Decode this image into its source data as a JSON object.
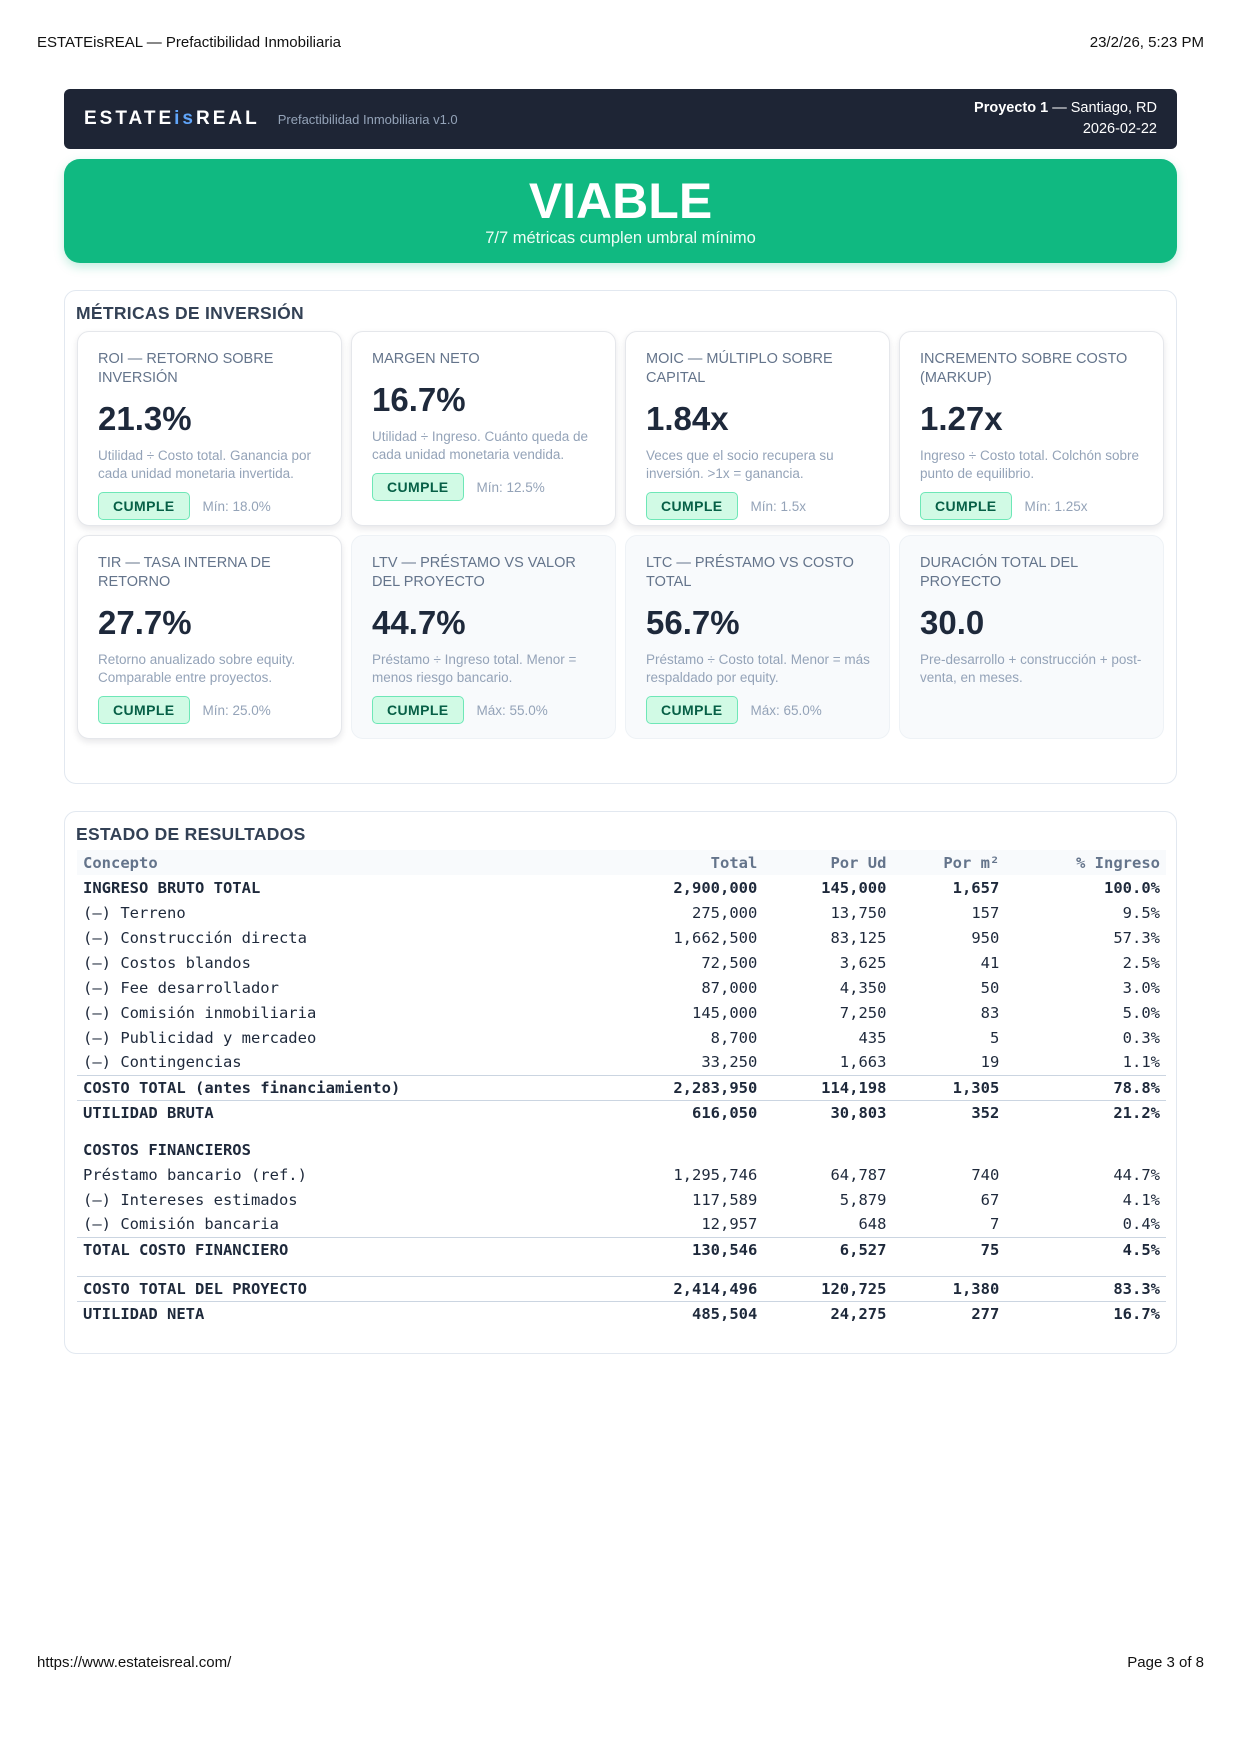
{
  "print": {
    "header_left": "ESTATEisREAL — Prefactibilidad Inmobiliaria",
    "header_right": "23/2/26, 5:23 PM",
    "footer_left": "https://www.estateisreal.com/",
    "footer_right": "Page 3 of 8"
  },
  "brand": {
    "logo_a": "ESTATE",
    "logo_is": "is",
    "logo_b": "REAL",
    "tagline": "Prefactibilidad Inmobiliaria v1.0",
    "project_name": "Proyecto 1",
    "project_location": " — Santiago, RD",
    "date": "2026-02-22"
  },
  "verdict": {
    "title": "VIABLE",
    "subtitle": "7/7 métricas cumplen umbral mínimo",
    "color": "#10b981"
  },
  "metrics": {
    "title": "MÉTRICAS DE INVERSIÓN",
    "cards": [
      {
        "label": "ROI — RETORNO SOBRE INVERSIÓN",
        "value": "21.3%",
        "desc": "Utilidad ÷ Costo total. Ganancia por cada unidad monetaria invertida.",
        "badge": "CUMPLE",
        "threshold": "Mín: 18.0%"
      },
      {
        "label": "MARGEN NETO",
        "value": "16.7%",
        "desc": "Utilidad ÷ Ingreso. Cuánto queda de cada unidad monetaria vendida.",
        "badge": "CUMPLE",
        "threshold": "Mín: 12.5%"
      },
      {
        "label": "MOIC — MÚLTIPLO SOBRE CAPITAL",
        "value": "1.84x",
        "desc": "Veces que el socio recupera su inversión. >1x = ganancia.",
        "badge": "CUMPLE",
        "threshold": "Mín: 1.5x"
      },
      {
        "label": "INCREMENTO SOBRE COSTO (MARKUP)",
        "value": "1.27x",
        "desc": "Ingreso ÷ Costo total. Colchón sobre punto de equilibrio.",
        "badge": "CUMPLE",
        "threshold": "Mín: 1.25x"
      },
      {
        "label": "TIR — TASA INTERNA DE RETORNO",
        "value": "27.7%",
        "desc": "Retorno anualizado sobre equity. Comparable entre proyectos.",
        "badge": "CUMPLE",
        "threshold": "Mín: 25.0%"
      },
      {
        "label": "LTV — PRÉSTAMO VS VALOR DEL PROYECTO",
        "value": "44.7%",
        "desc": "Préstamo ÷ Ingreso total. Menor = menos riesgo bancario.",
        "badge": "CUMPLE",
        "threshold": "Máx: 55.0%"
      },
      {
        "label": "LTC — PRÉSTAMO VS COSTO TOTAL",
        "value": "56.7%",
        "desc": "Préstamo ÷ Costo total. Menor = más respaldado por equity.",
        "badge": "CUMPLE",
        "threshold": "Máx: 65.0%"
      },
      {
        "label": "DURACIÓN TOTAL DEL PROYECTO",
        "value": "30.0",
        "desc": "Pre-desarrollo + construcción + post-venta, en meses."
      }
    ]
  },
  "results": {
    "title": "ESTADO DE RESULTADOS",
    "headers": [
      "Concepto",
      "Total",
      "Por Ud",
      "Por m²",
      "% Ingreso"
    ],
    "rows": [
      [
        "INGRESO BRUTO TOTAL",
        "2,900,000",
        "145,000",
        "1,657",
        "100.0%"
      ],
      [
        "(–) Terreno",
        "275,000",
        "13,750",
        "157",
        "9.5%"
      ],
      [
        "(–) Construcción directa",
        "1,662,500",
        "83,125",
        "950",
        "57.3%"
      ],
      [
        "(–) Costos blandos",
        "72,500",
        "3,625",
        "41",
        "2.5%"
      ],
      [
        "(–) Fee desarrollador",
        "87,000",
        "4,350",
        "50",
        "3.0%"
      ],
      [
        "(–) Comisión inmobiliaria",
        "145,000",
        "7,250",
        "83",
        "5.0%"
      ],
      [
        "(–) Publicidad y mercadeo",
        "8,700",
        "435",
        "5",
        "0.3%"
      ],
      [
        "(–) Contingencias",
        "33,250",
        "1,663",
        "19",
        "1.1%"
      ],
      [
        "COSTO TOTAL (antes financiamiento)",
        "2,283,950",
        "114,198",
        "1,305",
        "78.8%"
      ],
      [
        "UTILIDAD BRUTA",
        "616,050",
        "30,803",
        "352",
        "21.2%"
      ],
      [
        "COSTOS FINANCIEROS"
      ],
      [
        "Préstamo bancario (ref.)",
        "1,295,746",
        "64,787",
        "740",
        "44.7%"
      ],
      [
        "(–) Intereses estimados",
        "117,589",
        "5,879",
        "67",
        "4.1%"
      ],
      [
        "(–) Comisión bancaria",
        "12,957",
        "648",
        "7",
        "0.4%"
      ],
      [
        "TOTAL COSTO FINANCIERO",
        "130,546",
        "6,527",
        "75",
        "4.5%"
      ],
      [
        "COSTO TOTAL DEL PROYECTO",
        "2,414,496",
        "120,725",
        "1,380",
        "83.3%"
      ],
      [
        "UTILIDAD NETA",
        "485,504",
        "24,275",
        "277",
        "16.7%"
      ]
    ]
  }
}
